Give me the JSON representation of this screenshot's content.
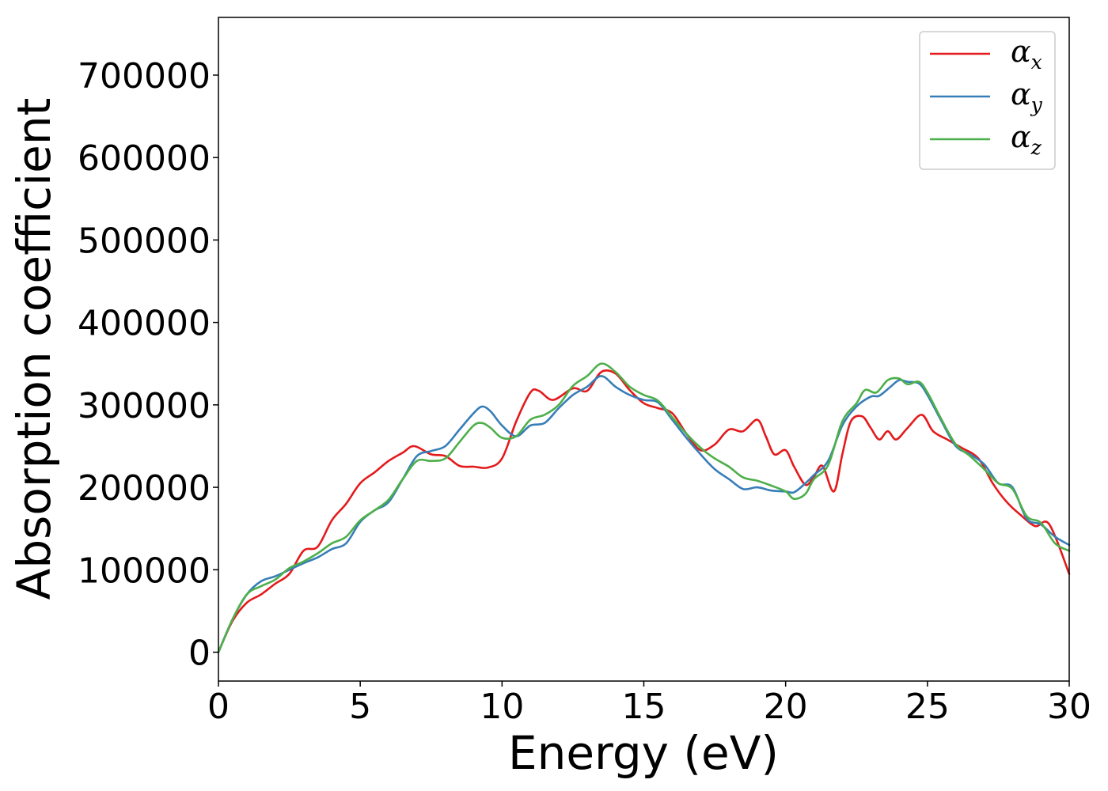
{
  "chart_data": {
    "type": "line",
    "title": "",
    "xlabel": "Energy (eV)",
    "ylabel": "Absorption coefficient",
    "xlim": [
      0,
      30
    ],
    "ylim": [
      -35000,
      770000
    ],
    "xticks": [
      0,
      5,
      10,
      15,
      20,
      25,
      30
    ],
    "xtick_labels": [
      "0",
      "5",
      "10",
      "15",
      "20",
      "25",
      "30"
    ],
    "yticks": [
      0,
      100000,
      200000,
      300000,
      400000,
      500000,
      600000,
      700000
    ],
    "ytick_labels": [
      "0",
      "100000",
      "200000",
      "300000",
      "400000",
      "500000",
      "600000",
      "700000"
    ],
    "grid": false,
    "legend_position": "top-right",
    "series": [
      {
        "name": "α",
        "subscript": "x",
        "color": "#e41a1c",
        "x": [
          0,
          0.5,
          1,
          1.5,
          2,
          2.5,
          3,
          3.5,
          4,
          4.5,
          5,
          5.5,
          6,
          6.5,
          6.9,
          7.5,
          8,
          8.5,
          9,
          9.5,
          10,
          10.5,
          11,
          11.3,
          11.8,
          12.5,
          13,
          13.5,
          14,
          14.5,
          15,
          15.5,
          16,
          16.5,
          17,
          17.5,
          18,
          18.5,
          19,
          19.3,
          19.6,
          20,
          20.3,
          20.7,
          21,
          21.3,
          21.7,
          22,
          22.3,
          22.7,
          23,
          23.3,
          23.6,
          23.9,
          24.3,
          24.8,
          25.2,
          25.7,
          26.2,
          26.8,
          27.3,
          27.8,
          28.3,
          28.8,
          29.3,
          30
        ],
        "values": [
          0,
          38000,
          60000,
          70000,
          83000,
          95000,
          123000,
          128000,
          160000,
          180000,
          205000,
          218000,
          232000,
          242000,
          250000,
          240000,
          238000,
          226000,
          225000,
          224000,
          235000,
          280000,
          315000,
          317000,
          306000,
          320000,
          317000,
          340000,
          338000,
          318000,
          302000,
          296000,
          290000,
          265000,
          245000,
          252000,
          270000,
          268000,
          282000,
          262000,
          240000,
          245000,
          225000,
          203000,
          213000,
          226000,
          195000,
          240000,
          280000,
          286000,
          272000,
          258000,
          268000,
          258000,
          272000,
          288000,
          268000,
          258000,
          248000,
          235000,
          205000,
          182000,
          166000,
          153000,
          155000,
          95000
        ]
      },
      {
        "name": "α",
        "subscript": "y",
        "color": "#377eb8",
        "x": [
          0,
          0.5,
          1,
          1.5,
          2,
          2.5,
          3,
          3.5,
          4,
          4.5,
          5,
          5.5,
          6,
          6.5,
          7,
          7.5,
          8,
          8.5,
          9,
          9.3,
          9.6,
          10,
          10.5,
          11,
          11.5,
          12,
          12.5,
          13,
          13.5,
          14,
          14.5,
          15,
          15.5,
          16,
          16.5,
          17,
          17.5,
          18,
          18.5,
          19,
          19.5,
          20,
          20.3,
          20.7,
          21,
          21.5,
          22,
          22.5,
          23,
          23.3,
          23.7,
          24,
          24.3,
          24.7,
          25,
          25.5,
          26,
          26.5,
          27,
          27.5,
          28,
          28.5,
          29,
          29.5,
          30
        ],
        "values": [
          0,
          40000,
          70000,
          86000,
          92000,
          100000,
          108000,
          115000,
          125000,
          132000,
          158000,
          172000,
          182000,
          210000,
          238000,
          244000,
          250000,
          270000,
          290000,
          298000,
          292000,
          275000,
          262000,
          275000,
          278000,
          296000,
          312000,
          322000,
          335000,
          322000,
          312000,
          306000,
          303000,
          282000,
          260000,
          240000,
          222000,
          210000,
          198000,
          200000,
          196000,
          195000,
          194000,
          205000,
          215000,
          232000,
          275000,
          298000,
          310000,
          311000,
          322000,
          330000,
          328000,
          326000,
          312000,
          280000,
          250000,
          240000,
          228000,
          205000,
          200000,
          162000,
          155000,
          140000,
          130000
        ]
      },
      {
        "name": "α",
        "subscript": "z",
        "color": "#4daf4a",
        "x": [
          0,
          0.5,
          1,
          1.5,
          2,
          2.5,
          3,
          3.5,
          4,
          4.5,
          5,
          5.5,
          6,
          6.5,
          7,
          7.5,
          8,
          8.5,
          9,
          9.3,
          9.6,
          10,
          10.5,
          11,
          11.5,
          12,
          12.5,
          13,
          13.5,
          14,
          14.5,
          15,
          15.5,
          16,
          16.5,
          17,
          17.5,
          18,
          18.5,
          19,
          19.5,
          20,
          20.3,
          20.7,
          21,
          21.5,
          22,
          22.5,
          22.8,
          23.2,
          23.6,
          24,
          24.3,
          24.7,
          25,
          25.5,
          26,
          26.5,
          27,
          27.5,
          28,
          28.5,
          29,
          29.5,
          30
        ],
        "values": [
          0,
          40000,
          70000,
          80000,
          88000,
          102000,
          110000,
          120000,
          132000,
          140000,
          160000,
          172000,
          185000,
          210000,
          232000,
          232000,
          235000,
          255000,
          275000,
          278000,
          272000,
          260000,
          262000,
          282000,
          288000,
          300000,
          323000,
          335000,
          350000,
          340000,
          322000,
          312000,
          305000,
          285000,
          265000,
          248000,
          235000,
          225000,
          212000,
          208000,
          202000,
          195000,
          186000,
          192000,
          210000,
          227000,
          280000,
          302000,
          318000,
          315000,
          330000,
          332000,
          325000,
          328000,
          315000,
          282000,
          252000,
          238000,
          222000,
          205000,
          198000,
          165000,
          157000,
          132000,
          123000
        ]
      }
    ]
  }
}
